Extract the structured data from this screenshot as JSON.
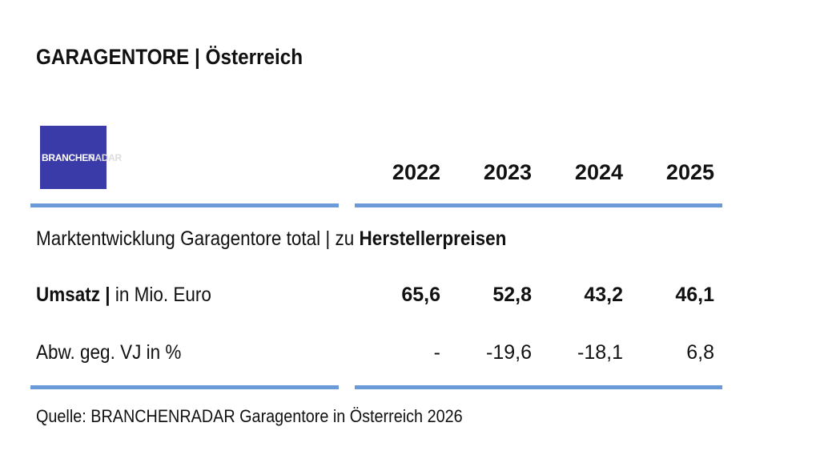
{
  "header": {
    "title": "GARAGENTORE | Österreich",
    "logo": {
      "part1": "BRANCHEN",
      "part2": "RADAR"
    }
  },
  "table": {
    "columns": [
      "2022",
      "2023",
      "2024",
      "2025"
    ],
    "section": {
      "text": "Marktentwicklung Garagentore total | zu ",
      "bold": "Herstellerpreisen"
    },
    "rows": [
      {
        "label_bold": "Umsatz |",
        "label": " in Mio. Euro",
        "values": [
          "65,6",
          "52,8",
          "43,2",
          "46,1"
        ]
      },
      {
        "label": "Abw. geg. VJ in %",
        "values": [
          "-",
          "-19,6",
          "-18,1",
          "6,8"
        ]
      }
    ]
  },
  "footer": {
    "source": "Quelle: BRANCHENRADAR Garagentore in Österreich 2026"
  }
}
